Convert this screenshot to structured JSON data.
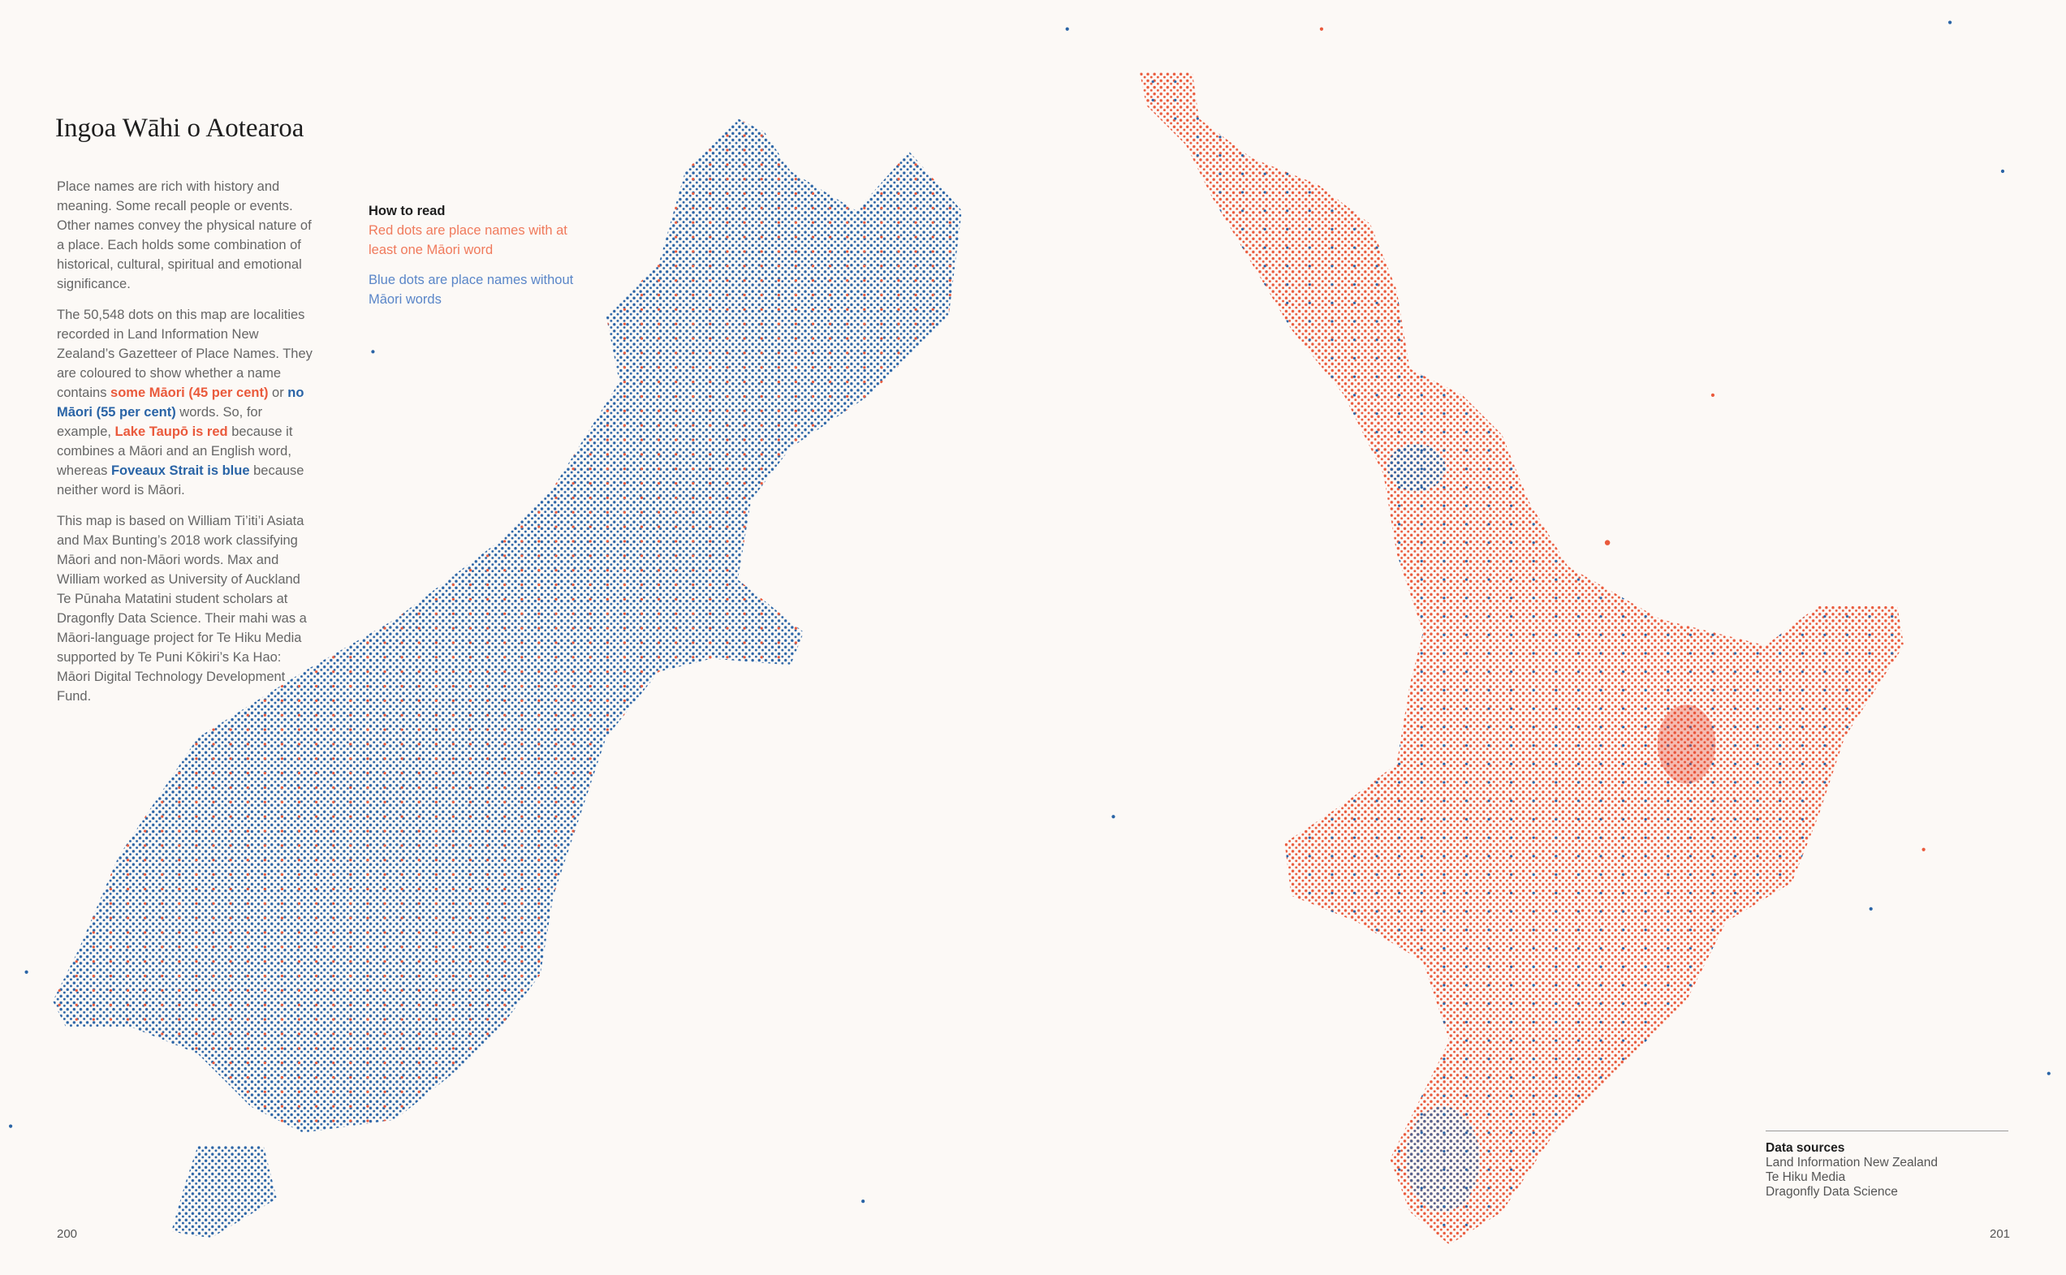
{
  "header": {
    "title": "Ingoa Wāhi o Aotearoa"
  },
  "body": {
    "paragraphs": [
      [
        "Place names are rich with history and meaning. Some recall people or events. Other names convey the physical nature of a place. Each holds some combination of historical, cultural, spiritual and emotional significance."
      ],
      [
        "The 50,548 dots on this map are localities recorded in Land Information New Zealand’s Gazetteer of Place Names. They are coloured to show whether a name contains ",
        {
          "text": "some Māori (45 per cent)",
          "color": "#ea5a3c"
        },
        " or ",
        {
          "text": "no Māori (55 per cent)",
          "color": "#2a64a6"
        },
        " words. So, for example, ",
        {
          "text": "Lake Taupō is red",
          "color": "#ea5a3c"
        },
        " because it combines a Māori and an English word, whereas ",
        {
          "text": "Foveaux Strait is blue",
          "color": "#2a64a6"
        },
        " because neither word is Māori."
      ],
      [
        "This map is based on William Ti’iti’i Asiata and Max Bunting’s 2018 work classifying Māori and non-Māori words. Max and William worked as University of Auckland Te Pūnaha Matatini student scholars at Dragonfly Data Science. Their mahi was a Māori-language project for Te Hiku Media supported by Te Puni Kōkiri’s Ka Hao: Māori Digital Technology Development Fund."
      ]
    ]
  },
  "how_to_read": {
    "heading": "How to read",
    "items": [
      {
        "text": "Red dots are place names with at least one Māori word",
        "color": "#f07a5c"
      },
      {
        "text": "Blue dots are place names without Māori words",
        "color": "#5a86c8"
      }
    ]
  },
  "data_sources": {
    "heading": "Data sources",
    "items": [
      "Land Information New Zealand",
      "Te Hiku Media",
      "Dragonfly Data Science"
    ]
  },
  "page_numbers": [
    "200",
    "201"
  ]
}
